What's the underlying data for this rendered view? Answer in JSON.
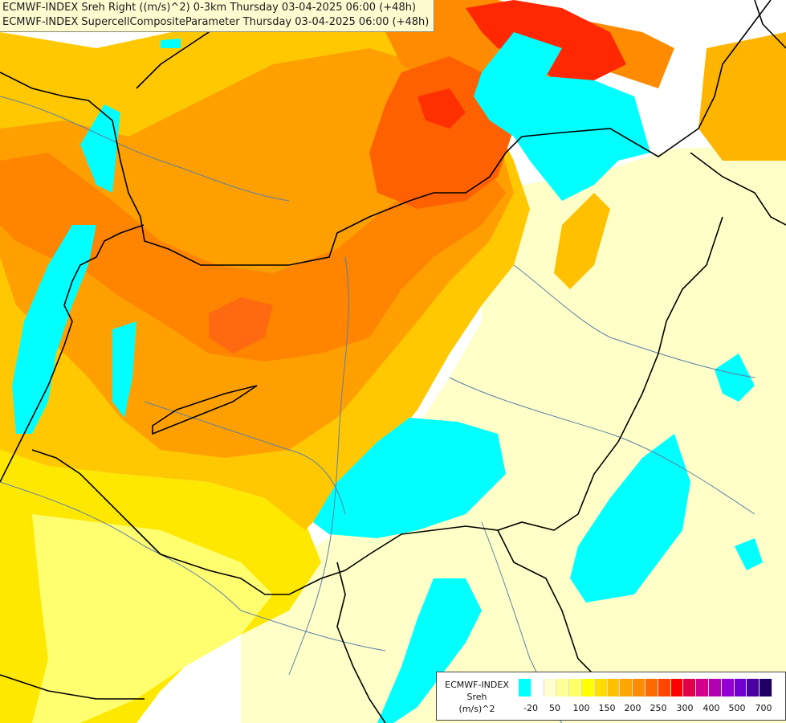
{
  "header": {
    "line1": "ECMWF-INDEX Sreh Right ((m/s)^2) 0-3km Thursday 03-04-2025 06:00 (+48h)",
    "line2": "ECMWF-INDEX SupercellCompositeParameter Thursday 03-04-2025 06:00 (+48h)"
  },
  "legend": {
    "line1": "ECMWF-INDEX",
    "line2": "Sreh",
    "line3": "(m/s)^2",
    "colors": [
      "#00ffff",
      "#ffffff",
      "#ffffd0",
      "#ffff99",
      "#ffff66",
      "#ffff00",
      "#ffdd00",
      "#ffc000",
      "#ffa500",
      "#ff8c00",
      "#ff6a00",
      "#ff4500",
      "#ff0000",
      "#e0004a",
      "#d0008c",
      "#b400b4",
      "#9400d3",
      "#7000d0",
      "#4b00a0",
      "#1e0064"
    ],
    "ticks": [
      "-20",
      "50",
      "100",
      "150",
      "200",
      "250",
      "300",
      "400",
      "500",
      "700"
    ]
  },
  "colors": {
    "cyan": "#00ffff",
    "pale": "#ffffcc",
    "yellow": "#ffe000",
    "orange": "#ffb000",
    "dark_orange": "#ff8000",
    "red_orange": "#ff5000",
    "red": "#ff2000"
  }
}
